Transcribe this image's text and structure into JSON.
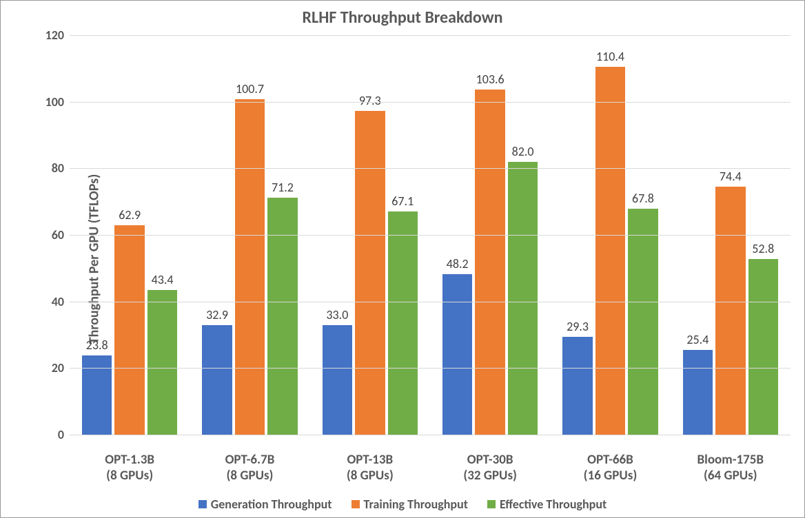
{
  "chart": {
    "type": "bar",
    "title": "RLHF Throughput Breakdown",
    "title_fontsize": 24,
    "title_color": "#595959",
    "y_axis_title": "Throughput Per GPU (TFLOPs)",
    "y_axis_title_fontsize": 20,
    "ylim": [
      0,
      120
    ],
    "ytick_step": 20,
    "y_ticks": [
      0,
      20,
      40,
      60,
      80,
      100,
      120
    ],
    "grid_color": "#d9d9d9",
    "background_color": "#ffffff",
    "tick_label_fontsize": 18,
    "tick_label_color": "#595959",
    "bar_label_fontsize": 18,
    "bar_label_color": "#404040",
    "x_label_fontsize": 19,
    "legend_fontsize": 18,
    "series": [
      {
        "name": "Generation Throughput",
        "color": "#4472c4"
      },
      {
        "name": "Training Throughput",
        "color": "#ed7d31"
      },
      {
        "name": "Effective Throughput",
        "color": "#70ad47"
      }
    ],
    "categories": [
      {
        "line1": "OPT-1.3B",
        "line2": "(8 GPUs)",
        "values": [
          23.8,
          62.9,
          43.4
        ]
      },
      {
        "line1": "OPT-6.7B",
        "line2": "(8 GPUs)",
        "values": [
          32.9,
          100.7,
          71.2
        ]
      },
      {
        "line1": "OPT-13B",
        "line2": "(8 GPUs)",
        "values": [
          33.0,
          97.3,
          67.1
        ]
      },
      {
        "line1": "OPT-30B",
        "line2": "(32 GPUs)",
        "values": [
          48.2,
          103.6,
          82.0
        ]
      },
      {
        "line1": "OPT-66B",
        "line2": "(16 GPUs)",
        "values": [
          29.3,
          110.4,
          67.8
        ]
      },
      {
        "line1": "Bloom-175B",
        "line2": "(64 GPUs)",
        "values": [
          25.4,
          74.4,
          52.8
        ]
      }
    ]
  }
}
